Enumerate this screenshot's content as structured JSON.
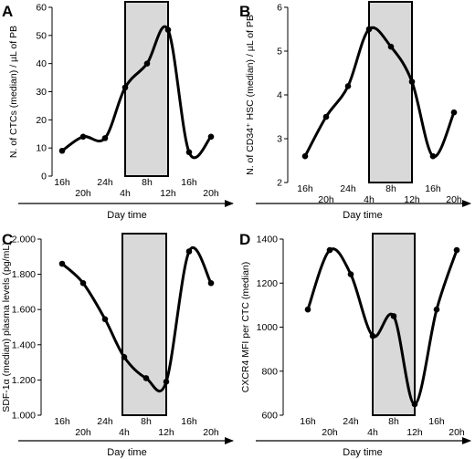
{
  "chart_data": [
    {
      "type": "line",
      "panel": "A",
      "ylabel": "N. of CTCs (median) / µL of PB",
      "xlabel": "Day time",
      "ylim": [
        0,
        60
      ],
      "yticks": [
        0,
        10,
        20,
        30,
        40,
        50,
        60
      ],
      "ytick_labels": [
        "0",
        "10",
        "20",
        "30",
        "40",
        "50",
        "60"
      ],
      "x": [
        "16h",
        "20h",
        "24h",
        "4h",
        "8h",
        "12h",
        "16h",
        "20h"
      ],
      "values": [
        9,
        14,
        13.5,
        31.5,
        40,
        52,
        8.5,
        14
      ],
      "shaded_interval": [
        "4h",
        "12h"
      ]
    },
    {
      "type": "line",
      "panel": "B",
      "ylabel": "N. of CD34⁺ HSC (median) / µL of PB",
      "xlabel": "Day time",
      "ylim": [
        2,
        6
      ],
      "yticks": [
        2,
        3,
        4,
        5,
        6
      ],
      "ytick_labels": [
        "2",
        "3",
        "4",
        "5",
        "6"
      ],
      "x": [
        "16h",
        "20h",
        "24h",
        "4h",
        "8h",
        "12h",
        "16h",
        "20h"
      ],
      "values": [
        2.6,
        3.5,
        4.2,
        5.5,
        5.1,
        4.3,
        2.6,
        3.6
      ],
      "shaded_interval": [
        "4h",
        "12h"
      ]
    },
    {
      "type": "line",
      "panel": "C",
      "ylabel": "SDF-1α (median) plasma levels (pg/mL)",
      "xlabel": "Day time",
      "ylim": [
        1000,
        2000
      ],
      "yticks": [
        1000,
        1200,
        1400,
        1600,
        1800,
        2000
      ],
      "ytick_labels": [
        "1.000",
        "1.200",
        "1.400",
        "1.600",
        "1.800",
        "2.000"
      ],
      "x": [
        "16h",
        "20h",
        "24h",
        "4h",
        "8h",
        "12h",
        "16h",
        "20h"
      ],
      "values": [
        1860,
        1750,
        1545,
        1330,
        1210,
        1190,
        1930,
        1750
      ],
      "shaded_interval": [
        "4h",
        "12h"
      ]
    },
    {
      "type": "line",
      "panel": "D",
      "ylabel": "CXCR4 MFI per CTC (median)",
      "xlabel": "Day time",
      "ylim": [
        600,
        1400
      ],
      "yticks": [
        600,
        800,
        1000,
        1200,
        1400
      ],
      "ytick_labels": [
        "600",
        "800",
        "1000",
        "1200",
        "1400"
      ],
      "x": [
        "16h",
        "20h",
        "24h",
        "4h",
        "8h",
        "12h",
        "16h",
        "20h"
      ],
      "values": [
        1080,
        1350,
        1240,
        960,
        1050,
        650,
        1080,
        1350
      ],
      "shaded_interval": [
        "4h",
        "12h"
      ]
    }
  ]
}
